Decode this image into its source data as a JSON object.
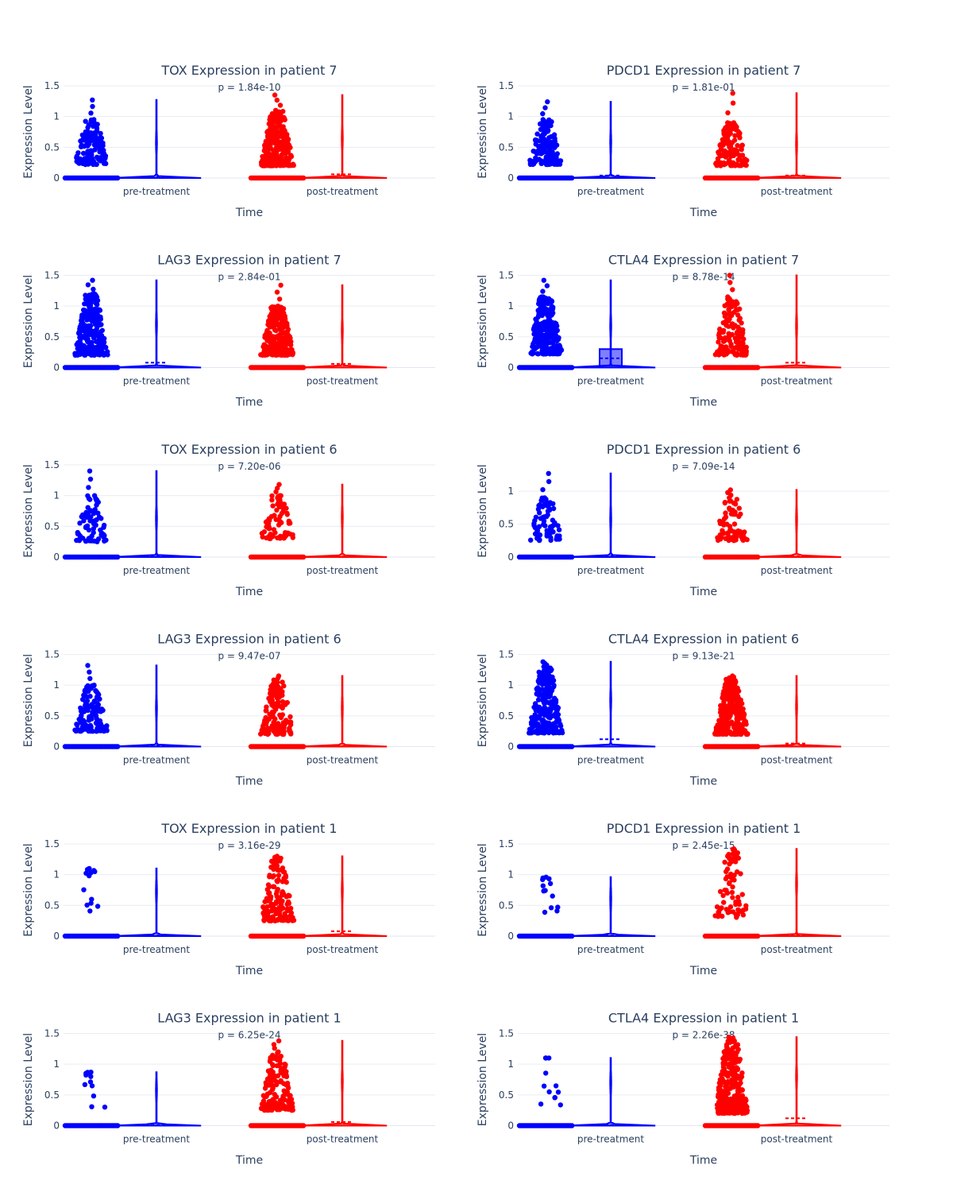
{
  "chart_data": [
    {
      "type": "violin",
      "title": "TOX Expression in patient 7",
      "pvalue": "p = 1.84e-10",
      "xlabel": "Time",
      "ylabel": "Expression Level",
      "categories": [
        "pre-treatment",
        "post-treatment"
      ],
      "yticks": [
        "0",
        "0.5",
        "1",
        "1.5"
      ],
      "ymax": 1.5,
      "series": [
        {
          "category": "pre-treatment",
          "color": "#0000ff",
          "max": 1.27,
          "median": 0.0,
          "mean": 0.02,
          "cluster_low": 0.22,
          "cluster_high": 0.95,
          "cluster_density": "high"
        },
        {
          "category": "post-treatment",
          "color": "#ff0000",
          "max": 1.35,
          "median": 0.0,
          "mean": 0.06,
          "cluster_low": 0.2,
          "cluster_high": 1.1,
          "cluster_density": "very-high"
        }
      ]
    },
    {
      "type": "violin",
      "title": "PDCD1 Expression in patient 7",
      "pvalue": "p = 1.81e-01",
      "xlabel": "Time",
      "ylabel": "Expression Level",
      "categories": [
        "pre-treatment",
        "post-treatment"
      ],
      "yticks": [
        "0",
        "0.5",
        "1",
        "1.5"
      ],
      "ymax": 1.5,
      "series": [
        {
          "category": "pre-treatment",
          "color": "#0000ff",
          "max": 1.24,
          "median": 0.0,
          "mean": 0.04,
          "cluster_low": 0.22,
          "cluster_high": 0.95,
          "cluster_density": "high"
        },
        {
          "category": "post-treatment",
          "color": "#ff0000",
          "max": 1.38,
          "median": 0.0,
          "mean": 0.04,
          "cluster_low": 0.2,
          "cluster_high": 0.9,
          "cluster_density": "high"
        }
      ]
    },
    {
      "type": "violin",
      "title": "LAG3 Expression in patient 7",
      "pvalue": "p = 2.84e-01",
      "xlabel": "Time",
      "ylabel": "Expression Level",
      "categories": [
        "pre-treatment",
        "post-treatment"
      ],
      "yticks": [
        "0",
        "0.5",
        "1",
        "1.5"
      ],
      "ymax": 1.5,
      "series": [
        {
          "category": "pre-treatment",
          "color": "#0000ff",
          "max": 1.42,
          "median": 0.0,
          "mean": 0.08,
          "cluster_low": 0.2,
          "cluster_high": 1.2,
          "cluster_density": "very-high"
        },
        {
          "category": "post-treatment",
          "color": "#ff0000",
          "max": 1.34,
          "median": 0.0,
          "mean": 0.06,
          "cluster_low": 0.2,
          "cluster_high": 1.0,
          "cluster_density": "very-high"
        }
      ]
    },
    {
      "type": "violin",
      "title": "CTLA4 Expression in patient 7",
      "pvalue": "p = 8.78e-14",
      "xlabel": "Time",
      "ylabel": "Expression Level",
      "categories": [
        "pre-treatment",
        "post-treatment"
      ],
      "yticks": [
        "0",
        "0.5",
        "1",
        "1.5"
      ],
      "ymax": 1.5,
      "series": [
        {
          "category": "pre-treatment",
          "color": "#0000ff",
          "max": 1.42,
          "median": 0.0,
          "mean": 0.15,
          "q3": 0.3,
          "show_box": true,
          "cluster_low": 0.22,
          "cluster_high": 1.15,
          "cluster_density": "very-high"
        },
        {
          "category": "post-treatment",
          "color": "#ff0000",
          "max": 1.5,
          "median": 0.0,
          "mean": 0.08,
          "cluster_low": 0.2,
          "cluster_high": 1.15,
          "cluster_density": "high"
        }
      ]
    },
    {
      "type": "violin",
      "title": "TOX Expression in patient 6",
      "pvalue": "p = 7.20e-06",
      "xlabel": "Time",
      "ylabel": "Expression Level",
      "categories": [
        "pre-treatment",
        "post-treatment"
      ],
      "yticks": [
        "0",
        "0.5",
        "1",
        "1.5"
      ],
      "ymax": 1.5,
      "series": [
        {
          "category": "pre-treatment",
          "color": "#0000ff",
          "max": 1.4,
          "median": 0.0,
          "mean": 0.02,
          "cluster_low": 0.25,
          "cluster_high": 1.0,
          "cluster_density": "medium"
        },
        {
          "category": "post-treatment",
          "color": "#ff0000",
          "max": 1.18,
          "median": 0.0,
          "mean": 0.01,
          "cluster_low": 0.3,
          "cluster_high": 1.0,
          "cluster_density": "medium"
        }
      ]
    },
    {
      "type": "violin",
      "title": "PDCD1 Expression in patient 6",
      "pvalue": "p = 7.09e-14",
      "xlabel": "Time",
      "ylabel": "Expression Level",
      "categories": [
        "pre-treatment",
        "post-treatment"
      ],
      "yticks": [
        "0",
        "0.5",
        "1"
      ],
      "ymax": 1.4,
      "series": [
        {
          "category": "pre-treatment",
          "color": "#0000ff",
          "max": 1.27,
          "median": 0.0,
          "mean": 0.02,
          "cluster_low": 0.25,
          "cluster_high": 0.9,
          "cluster_density": "medium"
        },
        {
          "category": "post-treatment",
          "color": "#ff0000",
          "max": 1.02,
          "median": 0.0,
          "mean": 0.01,
          "cluster_low": 0.25,
          "cluster_high": 0.9,
          "cluster_density": "medium"
        }
      ]
    },
    {
      "type": "violin",
      "title": "LAG3 Expression in patient 6",
      "pvalue": "p = 9.47e-07",
      "xlabel": "Time",
      "ylabel": "Expression Level",
      "categories": [
        "pre-treatment",
        "post-treatment"
      ],
      "yticks": [
        "0",
        "0.5",
        "1",
        "1.5"
      ],
      "ymax": 1.5,
      "series": [
        {
          "category": "pre-treatment",
          "color": "#0000ff",
          "max": 1.32,
          "median": 0.0,
          "mean": 0.02,
          "cluster_low": 0.25,
          "cluster_high": 1.0,
          "cluster_density": "high"
        },
        {
          "category": "post-treatment",
          "color": "#ff0000",
          "max": 1.15,
          "median": 0.0,
          "mean": 0.01,
          "cluster_low": 0.2,
          "cluster_high": 1.05,
          "cluster_density": "high"
        }
      ]
    },
    {
      "type": "violin",
      "title": "CTLA4 Expression in patient 6",
      "pvalue": "p = 9.13e-21",
      "xlabel": "Time",
      "ylabel": "Expression Level",
      "categories": [
        "pre-treatment",
        "post-treatment"
      ],
      "yticks": [
        "0",
        "0.5",
        "1",
        "1.5"
      ],
      "ymax": 1.5,
      "series": [
        {
          "category": "pre-treatment",
          "color": "#0000ff",
          "max": 1.38,
          "median": 0.0,
          "mean": 0.12,
          "cluster_low": 0.22,
          "cluster_high": 1.3,
          "cluster_density": "very-high"
        },
        {
          "category": "post-treatment",
          "color": "#ff0000",
          "max": 1.15,
          "median": 0.0,
          "mean": 0.05,
          "cluster_low": 0.2,
          "cluster_high": 1.1,
          "cluster_density": "very-high"
        }
      ]
    },
    {
      "type": "violin",
      "title": "TOX Expression in patient 1",
      "pvalue": "p = 3.16e-29",
      "xlabel": "Time",
      "ylabel": "Expression Level",
      "categories": [
        "pre-treatment",
        "post-treatment"
      ],
      "yticks": [
        "0",
        "0.5",
        "1",
        "1.5"
      ],
      "ymax": 1.5,
      "series": [
        {
          "category": "pre-treatment",
          "color": "#0000ff",
          "max": 1.1,
          "median": 0.0,
          "mean": 0.01,
          "cluster_low": 0.4,
          "cluster_high": 1.05,
          "cluster_density": "sparse"
        },
        {
          "category": "post-treatment",
          "color": "#ff0000",
          "max": 1.3,
          "median": 0.0,
          "mean": 0.08,
          "cluster_low": 0.25,
          "cluster_high": 1.25,
          "cluster_density": "high"
        }
      ]
    },
    {
      "type": "violin",
      "title": "PDCD1 Expression in patient 1",
      "pvalue": "p = 2.45e-15",
      "xlabel": "Time",
      "ylabel": "Expression Level",
      "categories": [
        "pre-treatment",
        "post-treatment"
      ],
      "yticks": [
        "0",
        "0.5",
        "1",
        "1.5"
      ],
      "ymax": 1.5,
      "series": [
        {
          "category": "pre-treatment",
          "color": "#0000ff",
          "max": 0.96,
          "median": 0.0,
          "mean": 0.01,
          "cluster_low": 0.3,
          "cluster_high": 0.92,
          "cluster_density": "sparse"
        },
        {
          "category": "post-treatment",
          "color": "#ff0000",
          "max": 1.42,
          "median": 0.0,
          "mean": 0.02,
          "cluster_low": 0.3,
          "cluster_high": 1.4,
          "cluster_density": "medium"
        }
      ]
    },
    {
      "type": "violin",
      "title": "LAG3 Expression in patient 1",
      "pvalue": "p = 6.25e-24",
      "xlabel": "Time",
      "ylabel": "Expression Level",
      "categories": [
        "pre-treatment",
        "post-treatment"
      ],
      "yticks": [
        "0",
        "0.5",
        "1",
        "1.5"
      ],
      "ymax": 1.5,
      "series": [
        {
          "category": "pre-treatment",
          "color": "#0000ff",
          "max": 0.87,
          "median": 0.0,
          "mean": 0.01,
          "cluster_low": 0.3,
          "cluster_high": 0.86,
          "cluster_density": "sparse"
        },
        {
          "category": "post-treatment",
          "color": "#ff0000",
          "max": 1.38,
          "median": 0.0,
          "mean": 0.06,
          "cluster_low": 0.25,
          "cluster_high": 1.2,
          "cluster_density": "high"
        }
      ]
    },
    {
      "type": "violin",
      "title": "CTLA4 Expression in patient 1",
      "pvalue": "p = 2.26e-38",
      "xlabel": "Time",
      "ylabel": "Expression Level",
      "categories": [
        "pre-treatment",
        "post-treatment"
      ],
      "yticks": [
        "0",
        "0.5",
        "1",
        "1.5"
      ],
      "ymax": 1.5,
      "series": [
        {
          "category": "pre-treatment",
          "color": "#0000ff",
          "max": 1.1,
          "median": 0.0,
          "mean": 0.01,
          "cluster_low": 0.3,
          "cluster_high": 1.1,
          "cluster_density": "sparse"
        },
        {
          "category": "post-treatment",
          "color": "#ff0000",
          "max": 1.44,
          "median": 0.0,
          "mean": 0.12,
          "cluster_low": 0.2,
          "cluster_high": 1.4,
          "cluster_density": "very-high"
        }
      ]
    }
  ]
}
